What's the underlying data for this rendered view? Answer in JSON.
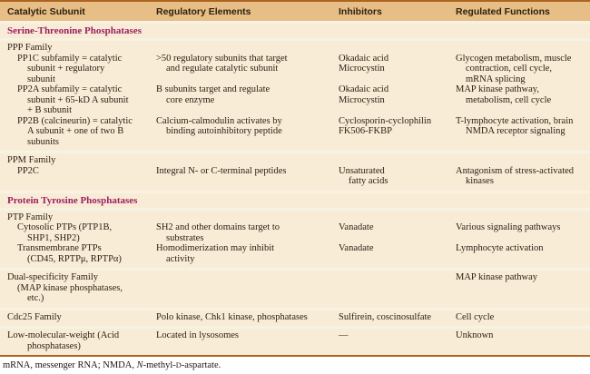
{
  "table": {
    "columns": [
      "Catalytic Subunit",
      "Regulatory Elements",
      "Inhibitors",
      "Regulated Functions"
    ],
    "sections": [
      {
        "title": "Serine-Threonine Phosphatases",
        "bands": [
          {
            "rows": [
              {
                "cells": [
                  [
                    {
                      "t": "PPP Family",
                      "i": 0
                    }
                  ],
                  [],
                  [],
                  []
                ]
              },
              {
                "cells": [
                  [
                    {
                      "t": "PP1C subfamily = catalytic",
                      "i": 1
                    },
                    {
                      "t": "subunit + regulatory",
                      "i": 2
                    },
                    {
                      "t": "subunit",
                      "i": 2
                    }
                  ],
                  [
                    {
                      "t": ">50 regulatory subunits that target",
                      "i": 0
                    },
                    {
                      "t": "and regulate catalytic subunit",
                      "i": 1
                    }
                  ],
                  [
                    {
                      "t": "Okadaic acid",
                      "i": 0
                    },
                    {
                      "t": "Microcystin",
                      "i": 0
                    }
                  ],
                  [
                    {
                      "t": "Glycogen metabolism, muscle",
                      "i": 0
                    },
                    {
                      "t": "contraction, cell cycle,",
                      "i": 1
                    },
                    {
                      "t": "mRNA splicing",
                      "i": 1
                    }
                  ]
                ]
              },
              {
                "cells": [
                  [
                    {
                      "t": "PP2A subfamily = catalytic",
                      "i": 1
                    },
                    {
                      "t": "subunit + 65-kD A subunit",
                      "i": 2
                    },
                    {
                      "t": "+ B subunit",
                      "i": 2
                    }
                  ],
                  [
                    {
                      "t": "B subunits target and regulate",
                      "i": 0
                    },
                    {
                      "t": "core enzyme",
                      "i": 1
                    }
                  ],
                  [
                    {
                      "t": "Okadaic acid",
                      "i": 0
                    },
                    {
                      "t": "Microcystin",
                      "i": 0
                    }
                  ],
                  [
                    {
                      "t": "MAP kinase pathway,",
                      "i": 0
                    },
                    {
                      "t": "metabolism, cell cycle",
                      "i": 1
                    }
                  ]
                ]
              },
              {
                "cells": [
                  [
                    {
                      "t": "PP2B (calcineurin) = catalytic",
                      "i": 1
                    },
                    {
                      "t": "A subunit + one of two B",
                      "i": 2
                    },
                    {
                      "t": "subunits",
                      "i": 2
                    }
                  ],
                  [
                    {
                      "t": "Calcium-calmodulin activates by",
                      "i": 0
                    },
                    {
                      "t": "binding autoinhibitory peptide",
                      "i": 1
                    }
                  ],
                  [
                    {
                      "t": "Cyclosporin-cyclophilin",
                      "i": 0
                    },
                    {
                      "t": "FK506-FKBP",
                      "i": 0
                    }
                  ],
                  [
                    {
                      "t": "T-lymphocyte activation, brain",
                      "i": 0
                    },
                    {
                      "t": "NMDA receptor signaling",
                      "i": 1
                    }
                  ]
                ]
              }
            ]
          },
          {
            "rows": [
              {
                "cells": [
                  [
                    {
                      "t": "PPM Family",
                      "i": 0
                    }
                  ],
                  [],
                  [],
                  []
                ]
              },
              {
                "cells": [
                  [
                    {
                      "t": "PP2C",
                      "i": 1
                    }
                  ],
                  [
                    {
                      "t": "Integral N- or C-terminal peptides",
                      "i": 0
                    }
                  ],
                  [
                    {
                      "t": "Unsaturated",
                      "i": 0
                    },
                    {
                      "t": "fatty acids",
                      "i": 1
                    }
                  ],
                  [
                    {
                      "t": "Antagonism of stress-activated",
                      "i": 0
                    },
                    {
                      "t": "kinases",
                      "i": 1
                    }
                  ]
                ]
              }
            ]
          }
        ]
      },
      {
        "title": "Protein Tyrosine Phosphatases",
        "bands": [
          {
            "rows": [
              {
                "cells": [
                  [
                    {
                      "t": "PTP Family",
                      "i": 0
                    }
                  ],
                  [],
                  [],
                  []
                ]
              },
              {
                "cells": [
                  [
                    {
                      "t": "Cytosolic PTPs (PTP1B,",
                      "i": 1
                    },
                    {
                      "t": "SHP1, SHP2)",
                      "i": 2
                    }
                  ],
                  [
                    {
                      "t": "SH2 and other domains target to",
                      "i": 0
                    },
                    {
                      "t": "substrates",
                      "i": 1
                    }
                  ],
                  [
                    {
                      "t": "Vanadate",
                      "i": 0
                    }
                  ],
                  [
                    {
                      "t": "Various signaling pathways",
                      "i": 0
                    }
                  ]
                ]
              },
              {
                "cells": [
                  [
                    {
                      "t": "Transmembrane PTPs",
                      "i": 1
                    },
                    {
                      "t": "(CD45, RPTPμ, RPTPα)",
                      "i": 2
                    }
                  ],
                  [
                    {
                      "t": "Homodimerization may inhibit",
                      "i": 0
                    },
                    {
                      "t": "activity",
                      "i": 1
                    }
                  ],
                  [
                    {
                      "t": "Vanadate",
                      "i": 0
                    }
                  ],
                  [
                    {
                      "t": "Lymphocyte activation",
                      "i": 0
                    }
                  ]
                ]
              }
            ]
          },
          {
            "rows": [
              {
                "cells": [
                  [
                    {
                      "t": "Dual-specificity Family",
                      "i": 0
                    },
                    {
                      "t": "(MAP kinase phosphatases,",
                      "i": 1
                    },
                    {
                      "t": "etc.)",
                      "i": 2
                    }
                  ],
                  [],
                  [],
                  [
                    {
                      "t": "MAP kinase pathway",
                      "i": 0
                    }
                  ]
                ]
              }
            ]
          },
          {
            "rows": [
              {
                "cells": [
                  [
                    {
                      "t": "Cdc25 Family",
                      "i": 0
                    }
                  ],
                  [
                    {
                      "t": "Polo kinase, Chk1 kinase, phosphatases",
                      "i": 0
                    }
                  ],
                  [
                    {
                      "t": "Sulfirein, coscinosulfate",
                      "i": 0
                    }
                  ],
                  [
                    {
                      "t": "Cell cycle",
                      "i": 0
                    }
                  ]
                ]
              }
            ]
          },
          {
            "rows": [
              {
                "cells": [
                  [
                    {
                      "t": "Low-molecular-weight (Acid",
                      "i": 0
                    },
                    {
                      "t": "phosphatases)",
                      "i": 2
                    }
                  ],
                  [
                    {
                      "t": "Located in lysosomes",
                      "i": 0
                    }
                  ],
                  [
                    {
                      "t": "—",
                      "i": 0
                    }
                  ],
                  [
                    {
                      "t": "Unknown",
                      "i": 0
                    }
                  ]
                ]
              }
            ]
          }
        ]
      }
    ],
    "footnote_parts": [
      {
        "t": "mRNA, messenger RNA; NMDA, "
      },
      {
        "t": "N",
        "style": "italic"
      },
      {
        "t": "-methyl-"
      },
      {
        "t": "D",
        "style": "smallcap"
      },
      {
        "t": "-aspartate."
      }
    ]
  },
  "colors": {
    "header_bg": "#e6be86",
    "body_bg": "#f9ecd7",
    "separator": "#f8f2e3",
    "border": "#ad6420",
    "section_title": "#9c2060",
    "header_text": "#2f2012",
    "body_text": "#2b2014"
  }
}
